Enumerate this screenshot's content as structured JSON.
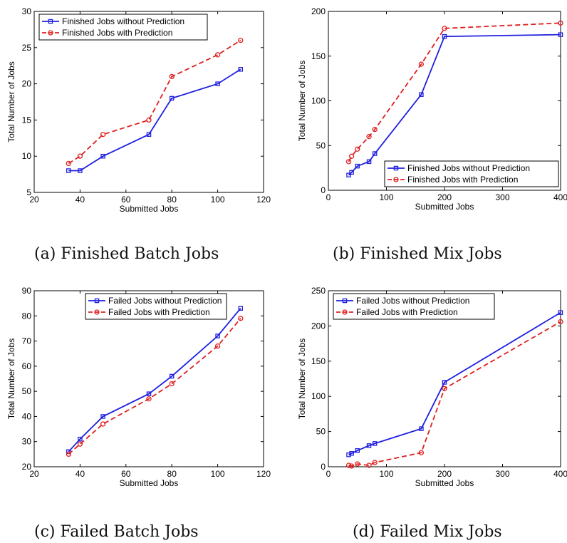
{
  "colors": {
    "without": "#1f1fe0",
    "with": "#e01f1f"
  },
  "chart_data": [
    {
      "type": "line",
      "caption": "(a) Finished Batch Jobs",
      "xlabel": "Submitted Jobs",
      "ylabel": "Total Number of Jobs",
      "xlim": [
        20,
        120
      ],
      "ylim": [
        5,
        30
      ],
      "xticks": [
        20,
        40,
        60,
        80,
        100,
        120
      ],
      "yticks": [
        5,
        10,
        15,
        20,
        25,
        30
      ],
      "legend_position": "top-left",
      "grid": false,
      "series": [
        {
          "name": "Finished Jobs without Prediction",
          "style": "solid-square",
          "x": [
            35,
            40,
            50,
            70,
            80,
            100,
            110
          ],
          "values": [
            8,
            8,
            10,
            13,
            18,
            20,
            22
          ]
        },
        {
          "name": "Finished Jobs with Prediction",
          "style": "dashed-circle",
          "x": [
            35,
            40,
            50,
            70,
            80,
            100,
            110
          ],
          "values": [
            9,
            10,
            13,
            15,
            21,
            24,
            26
          ]
        }
      ]
    },
    {
      "type": "line",
      "caption": "(b) Finished Mix Jobs",
      "xlabel": "Submitted Jobs",
      "ylabel": "Total Number of Jobs",
      "xlim": [
        0,
        400
      ],
      "ylim": [
        0,
        200
      ],
      "xticks": [
        0,
        100,
        200,
        300,
        400
      ],
      "yticks": [
        0,
        50,
        100,
        150,
        200
      ],
      "legend_position": "bottom-right",
      "grid": false,
      "series": [
        {
          "name": "Finished Jobs without Prediction",
          "style": "solid-square",
          "x": [
            35,
            40,
            50,
            70,
            80,
            160,
            200,
            400
          ],
          "values": [
            17,
            20,
            27,
            32,
            41,
            107,
            172,
            174
          ]
        },
        {
          "name": "Finished Jobs with Prediction",
          "style": "dashed-circle",
          "x": [
            35,
            40,
            50,
            70,
            80,
            160,
            200,
            400
          ],
          "values": [
            32,
            38,
            46,
            60,
            68,
            141,
            181,
            187
          ]
        }
      ]
    },
    {
      "type": "line",
      "caption": "(c) Failed Batch Jobs",
      "xlabel": "Submitted Jobs",
      "ylabel": "Total Number of Jobs",
      "xlim": [
        20,
        120
      ],
      "ylim": [
        20,
        90
      ],
      "xticks": [
        20,
        40,
        60,
        80,
        100,
        120
      ],
      "yticks": [
        20,
        30,
        40,
        50,
        60,
        70,
        80,
        90
      ],
      "legend_position": "top-right",
      "grid": false,
      "series": [
        {
          "name": "Failed Jobs without Prediction",
          "style": "solid-square",
          "x": [
            35,
            40,
            50,
            70,
            80,
            100,
            110
          ],
          "values": [
            26,
            31,
            40,
            49,
            56,
            72,
            83
          ]
        },
        {
          "name": "Failed Jobs with Prediction",
          "style": "dashed-circle",
          "x": [
            35,
            40,
            50,
            70,
            80,
            100,
            110
          ],
          "values": [
            25,
            29,
            37,
            47,
            53,
            68,
            79
          ]
        }
      ]
    },
    {
      "type": "line",
      "caption": "(d) Failed Mix Jobs",
      "xlabel": "Submitted Jobs",
      "ylabel": "Total Number of Jobs",
      "xlim": [
        0,
        400
      ],
      "ylim": [
        0,
        250
      ],
      "xticks": [
        0,
        100,
        200,
        300,
        400
      ],
      "yticks": [
        0,
        50,
        100,
        150,
        200,
        250
      ],
      "legend_position": "top-left",
      "grid": false,
      "series": [
        {
          "name": "Failed Jobs without Prediction",
          "style": "solid-square",
          "x": [
            35,
            40,
            50,
            70,
            80,
            160,
            200,
            400
          ],
          "values": [
            17,
            19,
            23,
            30,
            33,
            54,
            120,
            219
          ]
        },
        {
          "name": "Failed Jobs with Prediction",
          "style": "dashed-circle",
          "x": [
            35,
            40,
            50,
            70,
            80,
            160,
            200,
            400
          ],
          "values": [
            2,
            1,
            4,
            2,
            6,
            20,
            111,
            206
          ]
        }
      ]
    }
  ]
}
